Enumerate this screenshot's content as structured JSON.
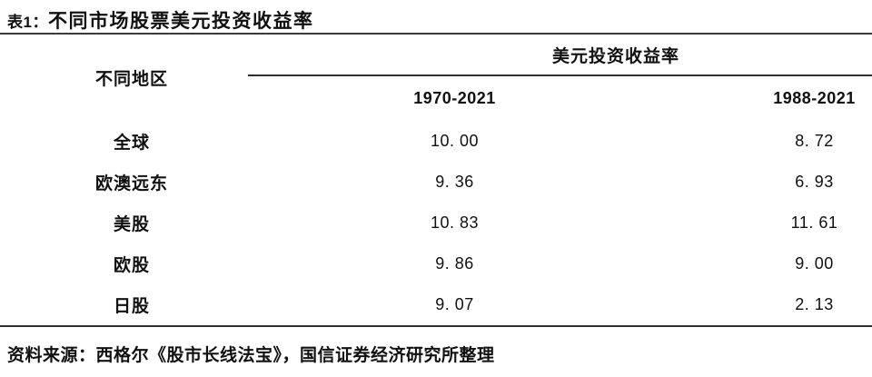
{
  "title": {
    "prefix": "表1：",
    "text": "不同市场股票美元投资收益率"
  },
  "table": {
    "region_header": "不同地区",
    "group_header": "美元投资收益率",
    "period_headers": {
      "col1": "1970-2021",
      "col2": "1988-2021"
    },
    "rows": [
      {
        "region": "全球",
        "v1970": "10. 00",
        "v1988": "8. 72"
      },
      {
        "region": "欧澳远东",
        "v1970": "9. 36",
        "v1988": "6. 93"
      },
      {
        "region": "美股",
        "v1970": "10. 83",
        "v1988": "11. 61"
      },
      {
        "region": "欧股",
        "v1970": "9. 86",
        "v1988": "9. 00"
      },
      {
        "region": "日股",
        "v1970": "9. 07",
        "v1988": "2. 13"
      }
    ]
  },
  "source": "资料来源：西格尔《股市长线法宝》，国信证券经济研究所整理",
  "colors": {
    "text": "#111111",
    "line": "#2e2e2e",
    "background": "#ffffff"
  },
  "chart_data": {
    "type": "table",
    "title": "表1：不同市场股票美元投资收益率",
    "columns": [
      "不同地区",
      "1970-2021",
      "1988-2021"
    ],
    "rows": [
      [
        "全球",
        10.0,
        8.72
      ],
      [
        "欧澳远东",
        9.36,
        6.93
      ],
      [
        "美股",
        10.83,
        11.61
      ],
      [
        "欧股",
        9.86,
        9.0
      ],
      [
        "日股",
        9.07,
        2.13
      ]
    ],
    "source": "资料来源：西格尔《股市长线法宝》，国信证券经济研究所整理"
  }
}
